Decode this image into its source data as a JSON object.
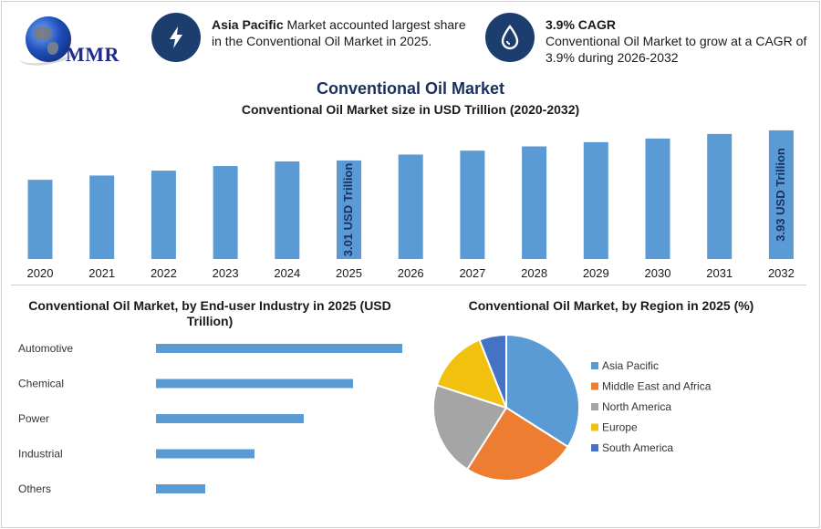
{
  "logo": {
    "text": "MMR"
  },
  "info_cards": [
    {
      "icon": "lightning-icon",
      "bold": "Asia Pacific",
      "text": " Market accounted largest share in the Conventional Oil Market in 2025."
    },
    {
      "icon": "oil-drop-icon",
      "bold": "3.9% CAGR",
      "text": "Conventional Oil Market to grow at a CAGR of 3.9% during 2026-2032"
    }
  ],
  "main_title": "Conventional Oil Market",
  "colors": {
    "bar": "#5b9bd5",
    "navy": "#1b3e6f"
  },
  "chart_data": [
    {
      "type": "bar",
      "title": "Conventional Oil Market size in USD Trillion (2020-2032)",
      "categories": [
        "2020",
        "2021",
        "2022",
        "2023",
        "2024",
        "2025",
        "2026",
        "2027",
        "2028",
        "2029",
        "2030",
        "2031",
        "2032"
      ],
      "values": [
        2.42,
        2.55,
        2.7,
        2.84,
        2.98,
        3.01,
        3.19,
        3.31,
        3.44,
        3.57,
        3.68,
        3.82,
        3.93
      ],
      "data_labels": [
        {
          "category": "2025",
          "text": "3.01 USD Trillion"
        },
        {
          "category": "2032",
          "text": "3.93 USD Trillion"
        }
      ],
      "ylim": [
        0,
        4.0
      ],
      "grid": false
    },
    {
      "type": "bar",
      "orientation": "horizontal",
      "title": "Conventional Oil Market, by End-user Industry in 2025 (USD Trillion)",
      "categories": [
        "Automotive",
        "Chemical",
        "Power",
        "Industrial",
        "Others"
      ],
      "values": [
        1.0,
        0.8,
        0.6,
        0.4,
        0.2
      ],
      "xlim": [
        0,
        1.0
      ],
      "grid": false
    },
    {
      "type": "pie",
      "title": "Conventional Oil Market, by Region in 2025 (%)",
      "labels": [
        "Asia Pacific",
        "Middle East and Africa",
        "North America",
        "Europe",
        "South America"
      ],
      "values": [
        34,
        25,
        21,
        14,
        6
      ],
      "colors": [
        "#5b9bd5",
        "#ed7d31",
        "#a5a5a5",
        "#f2c10f",
        "#4472c4"
      ],
      "legend_position": "right"
    }
  ]
}
